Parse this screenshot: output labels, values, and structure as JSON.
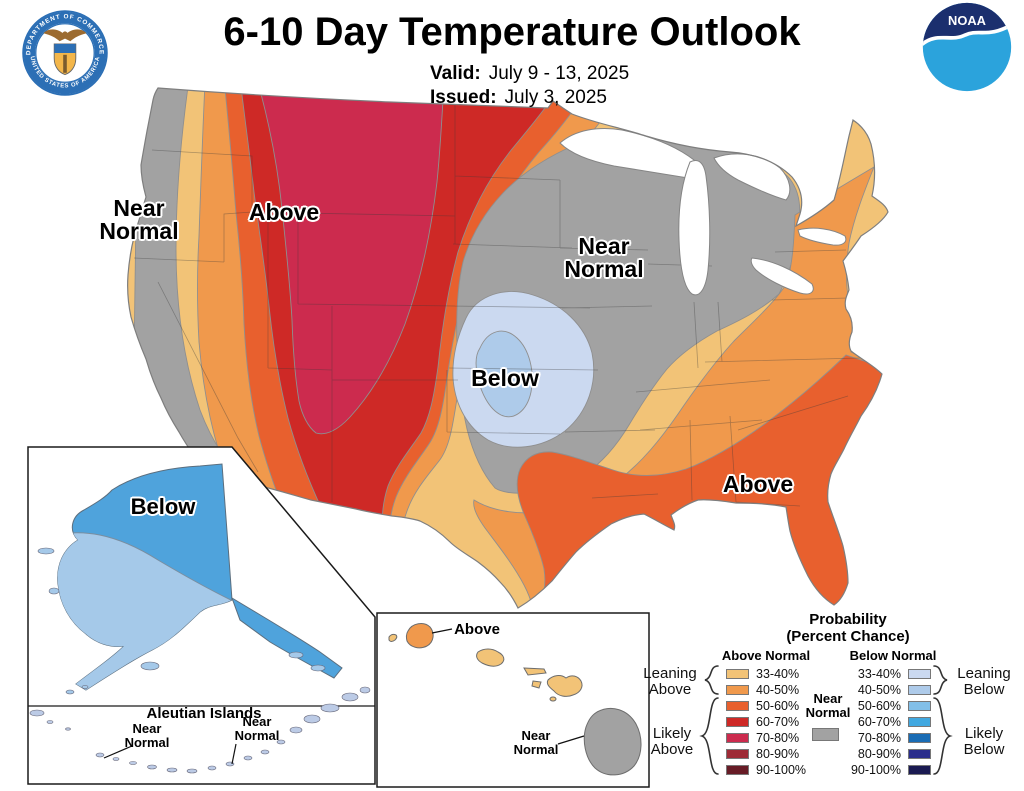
{
  "header": {
    "title": "6-10 Day Temperature Outlook",
    "valid_label": "Valid:",
    "valid_value": "July 9 - 13, 2025",
    "issued_label": "Issued:",
    "issued_value": "July 3, 2025"
  },
  "logos": {
    "noaa_text": "NOAA",
    "doc_ring_top": "DEPARTMENT OF COMMERCE",
    "doc_ring_bottom": "UNITED STATES OF AMERICA"
  },
  "map": {
    "labels": {
      "west_near_normal": [
        "Near",
        "Normal"
      ],
      "west_above": "Above",
      "central_near_normal": [
        "Near",
        "Normal"
      ],
      "central_below": "Below",
      "southeast_above": "Above"
    }
  },
  "alaska": {
    "below_label": "Below",
    "aleutian_title": "Aleutian Islands",
    "near_normal_left": [
      "Near",
      "Normal"
    ],
    "near_normal_right": [
      "Near",
      "Normal"
    ]
  },
  "hawaii": {
    "above_label": "Above",
    "near_normal": [
      "Near",
      "Normal"
    ]
  },
  "legend": {
    "title": "Probability",
    "subtitle": "(Percent Chance)",
    "above_header": "Above Normal",
    "below_header": "Below Normal",
    "near_normal": [
      "Near",
      "Normal"
    ],
    "groups": {
      "leaning_above": [
        "Leaning",
        "Above"
      ],
      "likely_above": [
        "Likely",
        "Above"
      ],
      "leaning_below": [
        "Leaning",
        "Below"
      ],
      "likely_below": [
        "Likely",
        "Below"
      ]
    },
    "rows": [
      {
        "range": "33-40%",
        "above_color": "#F2C377",
        "below_color": "#CBD9F0"
      },
      {
        "range": "40-50%",
        "above_color": "#F0994C",
        "below_color": "#AECBEA"
      },
      {
        "range": "50-60%",
        "above_color": "#E8602E",
        "below_color": "#82BFE8"
      },
      {
        "range": "60-70%",
        "above_color": "#CE2926",
        "below_color": "#41A8E0"
      },
      {
        "range": "70-80%",
        "above_color": "#CC2B4E",
        "below_color": "#1A6CB4"
      },
      {
        "range": "80-90%",
        "above_color": "#9E2B36",
        "below_color": "#2B2E8C"
      },
      {
        "range": "90-100%",
        "above_color": "#671C26",
        "below_color": "#1A1A52"
      }
    ]
  },
  "colors": {
    "above_33_40": "#F2C377",
    "above_40_50": "#F0994C",
    "above_50_60": "#E8602E",
    "above_60_70": "#CE2926",
    "above_70_80": "#CC2B4E",
    "above_80_90": "#9E2B36",
    "above_90_100": "#671C26",
    "below_33_40": "#CBD9F0",
    "below_40_50": "#AECBEA",
    "below_50_60": "#82BFE8",
    "below_60_70": "#41A8E0",
    "below_70_80": "#1A6CB4",
    "below_80_90": "#2B2E8C",
    "below_90_100": "#1A1A52",
    "near_normal": "#A2A2A2",
    "alaska_dark": "#4FA3DC",
    "alaska_light": "#A5C9E9",
    "island": "#BCCBE6",
    "land_stroke": "#7E7E7E",
    "noaa_light": "#2BA3DC",
    "noaa_dark": "#1B2F6E",
    "doc_blue": "#2C6FB5",
    "doc_gold": "#F3B64A"
  }
}
